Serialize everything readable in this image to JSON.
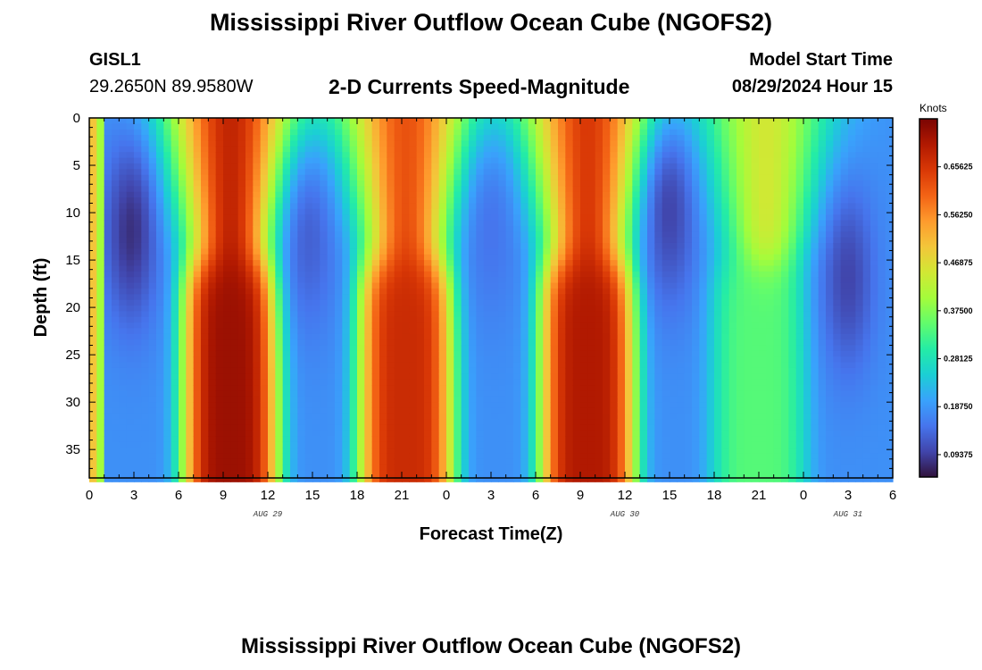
{
  "page": {
    "title": "Mississippi River Outflow Ocean Cube (NGOFS2)",
    "station_id": "GISL1",
    "station_coords": "29.2650N  89.9580W",
    "model_start_label": "Model Start Time",
    "model_start_value": "08/29/2024 Hour 15",
    "second_title": "Mississippi River Outflow Ocean Cube (NGOFS2)"
  },
  "chart_data": {
    "type": "heatmap",
    "subtitle": "2-D Currents Speed-Magnitude",
    "xlabel": "Forecast Time(Z)",
    "ylabel": "Depth (ft)",
    "colorbar_unit": "Knots",
    "x_ticks": [
      "0",
      "3",
      "6",
      "9",
      "12",
      "15",
      "18",
      "21",
      "0",
      "3",
      "6",
      "9",
      "12",
      "15",
      "18",
      "21",
      "0",
      "3",
      "6"
    ],
    "x_range_hours": [
      0,
      54
    ],
    "date_labels": [
      {
        "text": "AUG 29",
        "hour": 12
      },
      {
        "text": "AUG 30",
        "hour": 36
      },
      {
        "text": "AUG 31",
        "hour": 51
      }
    ],
    "y_ticks": [
      "0",
      "5",
      "10",
      "15",
      "20",
      "25",
      "30",
      "35"
    ],
    "y_tick_values": [
      0,
      5,
      10,
      15,
      20,
      25,
      30,
      35
    ],
    "y_range_ft": [
      0,
      38
    ],
    "colorbar_labels": [
      "0.65625",
      "0.56250",
      "0.46875",
      "0.37500",
      "0.28125",
      "0.18750",
      "0.09375"
    ],
    "colorbar_values": [
      0.65625,
      0.5625,
      0.46875,
      0.375,
      0.28125,
      0.1875,
      0.09375
    ],
    "color_range": [
      0.05,
      0.75
    ],
    "colormap": [
      "#30123b",
      "#4145ab",
      "#4675ed",
      "#39a2fc",
      "#1bcfd4",
      "#24eca6",
      "#61fc6c",
      "#a4fc3b",
      "#d1e834",
      "#f3c63a",
      "#fe9b2d",
      "#f36315",
      "#d93806",
      "#b11901",
      "#7a0403"
    ],
    "peaks_near_surface": [
      {
        "hour": 9.5,
        "speed": 0.68
      },
      {
        "hour": 21.3,
        "speed": 0.62
      },
      {
        "hour": 33.5,
        "speed": 0.65
      },
      {
        "hour": 45.5,
        "speed": 0.45
      }
    ],
    "peaks_at_depth": [
      {
        "hour": 9.5,
        "speed": 0.72
      },
      {
        "hour": 21.3,
        "speed": 0.67
      },
      {
        "hour": 33.5,
        "speed": 0.7
      },
      {
        "hour": 45.0,
        "speed": 0.34
      }
    ],
    "minima": [
      {
        "hour": 2.8,
        "depth": 12,
        "speed": 0.08
      },
      {
        "hour": 14.8,
        "depth": 13,
        "speed": 0.13
      },
      {
        "hour": 27.0,
        "depth": 12,
        "speed": 0.15
      },
      {
        "hour": 39.0,
        "depth": 10,
        "speed": 0.1
      },
      {
        "hour": 51.0,
        "depth": 17,
        "speed": 0.1
      }
    ]
  }
}
